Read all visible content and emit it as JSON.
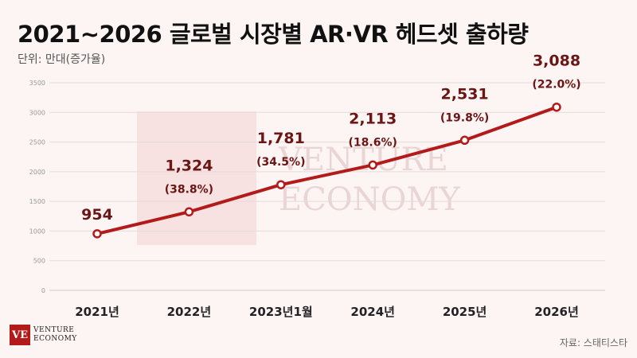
{
  "header": {
    "title": "2021~2026 글로벌 시장별 AR·VR 헤드셋 출하량",
    "unit": "단위: 만대(증가율)"
  },
  "watermark": {
    "line1": "VENTURE",
    "line2": "ECONOMY"
  },
  "logo": {
    "mark": "VE",
    "line1": "VENTURE",
    "line2": "ECONOMY"
  },
  "source": "자료: 스태티스타",
  "colors": {
    "line": "#b31b1b",
    "label": "#6b1515",
    "axis_text": "#777777",
    "grid": "#e6dada"
  },
  "chart_data": {
    "type": "line",
    "categories": [
      "2021년",
      "2022년",
      "2023년1월",
      "2024년",
      "2025년",
      "2026년"
    ],
    "values": [
      954,
      1324,
      1781,
      2113,
      2531,
      3088
    ],
    "value_labels": [
      "954",
      "1,324",
      "1,781",
      "2,113",
      "2,531",
      "3,088"
    ],
    "growth_labels": [
      "",
      "(38.8%)",
      "(34.5%)",
      "(18.6%)",
      "(19.8%)",
      "(22.0%)"
    ],
    "ylim": [
      0,
      3500
    ],
    "yticks": [
      0,
      500,
      1000,
      1500,
      2000,
      2500,
      3000,
      3500
    ],
    "grid": true
  }
}
